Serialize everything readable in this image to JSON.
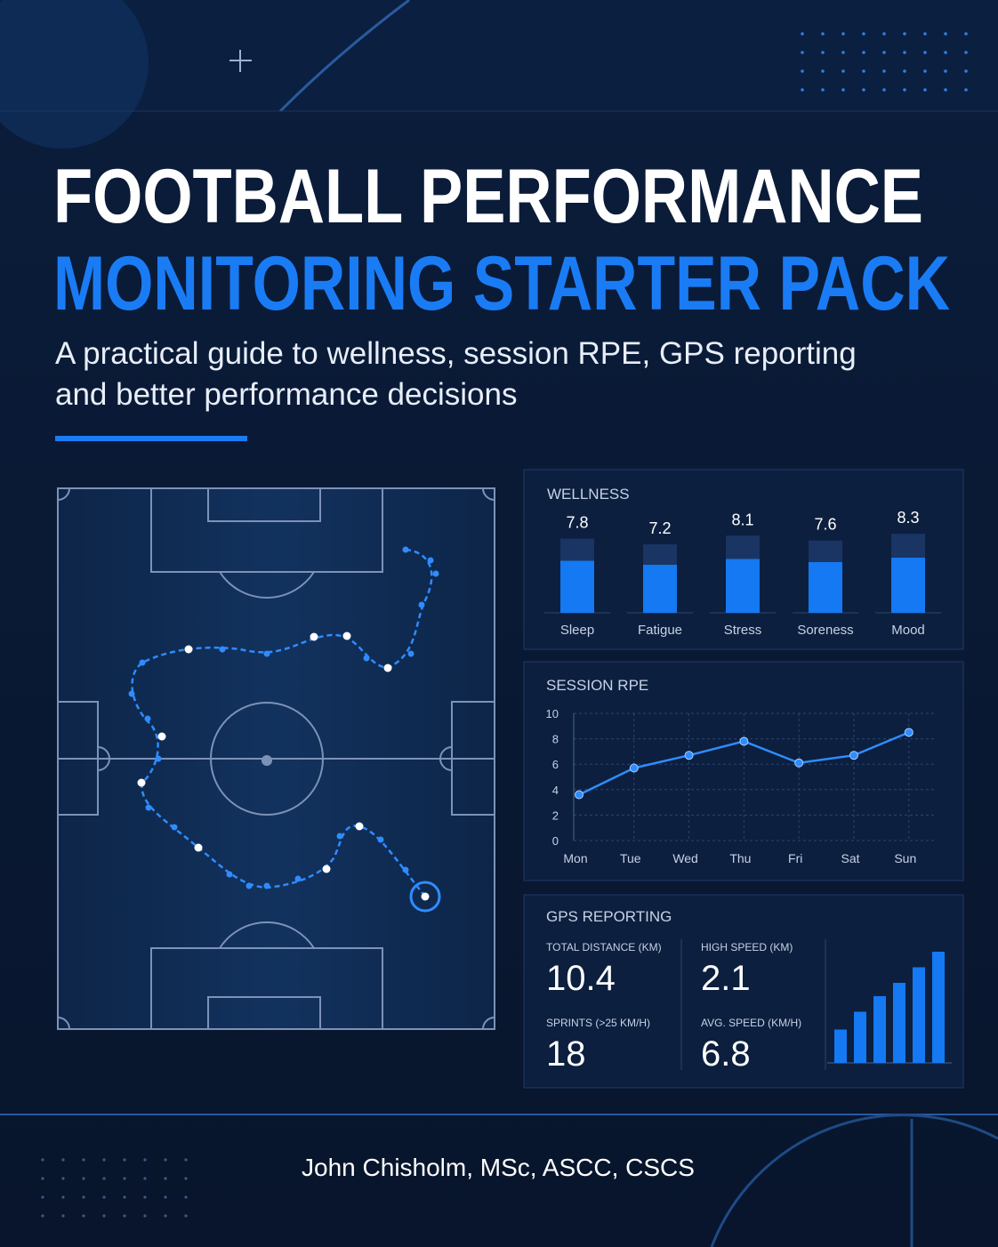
{
  "header": {
    "title_line1": "FOOTBALL PERFORMANCE",
    "title_line2": "MONITORING STARTER PACK",
    "subtitle_line1": "A practical guide to wellness, session RPE, GPS reporting",
    "subtitle_line2": "and better performance decisions"
  },
  "chart_data": [
    {
      "type": "bar",
      "title": "WELLNESS",
      "categories": [
        "Sleep",
        "Fatigue",
        "Stress",
        "Soreness",
        "Mood"
      ],
      "values": [
        7.8,
        7.2,
        8.1,
        7.6,
        8.3
      ],
      "color": "#1479f2"
    },
    {
      "type": "line",
      "title": "SESSION RPE",
      "categories": [
        "Mon",
        "Tue",
        "Wed",
        "Thu",
        "Fri",
        "Sat",
        "Sun"
      ],
      "values": [
        3.6,
        5.7,
        6.7,
        7.8,
        6.1,
        6.7,
        8.5
      ],
      "color": "#2f8cff",
      "ylim": [
        0,
        10
      ],
      "yticks": [
        0,
        2,
        4,
        6,
        8,
        10
      ],
      "grid": true
    },
    {
      "type": "bar",
      "values": [
        30,
        46,
        60,
        72,
        86,
        100
      ],
      "color": "#1479f2"
    }
  ],
  "gps": {
    "title": "GPS REPORTING",
    "stats": [
      {
        "label": "TOTAL DISTANCE (KM)",
        "value": 10.4
      },
      {
        "label": "HIGH SPEED (KM)",
        "value": 2.1
      },
      {
        "label": "SPRINTS (>25 KM/H)",
        "value": 18
      },
      {
        "label": "AVG. SPEED (KM/H)",
        "value": 6.8
      }
    ]
  },
  "author": "John Chisholm, MSc, ASCC, CSCS"
}
